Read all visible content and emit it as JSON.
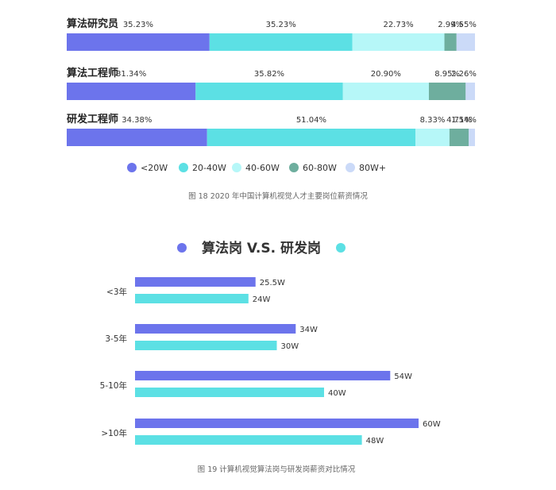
{
  "colors": {
    "seg1": "#6c74ec",
    "seg2": "#5ce0e4",
    "seg3": "#b6f7f8",
    "seg4": "#6eae9e",
    "seg5": "#cbdaf8",
    "bar_algo": "#6c74ec",
    "bar_dev": "#5ce0e4"
  },
  "chart_data": [
    {
      "type": "bar",
      "stacked": true,
      "orientation": "horizontal",
      "categories": [
        "算法研究员",
        "算法工程师",
        "研发工程师"
      ],
      "series": [
        {
          "name": "<20W",
          "values": [
            35.23,
            31.34,
            34.38
          ],
          "labels": [
            "35.23%",
            "31.34%",
            "34.38%"
          ]
        },
        {
          "name": "20-40W",
          "values": [
            35.23,
            35.82,
            51.04
          ],
          "labels": [
            "35.23%",
            "35.82%",
            "51.04%"
          ]
        },
        {
          "name": "40-60W",
          "values": [
            22.73,
            20.9,
            8.33
          ],
          "labels": [
            "22.73%",
            "20.90%",
            "8.33%"
          ]
        },
        {
          "name": "60-80W",
          "values": [
            2.99,
            8.95,
            4.71
          ],
          "labels": [
            "2.99%",
            "8.95%",
            "4.71%"
          ]
        },
        {
          "name": "80W+",
          "values": [
            4.55,
            2.26,
            1.54
          ],
          "labels": [
            "4.55%",
            "2.26%",
            "1.54%"
          ]
        }
      ],
      "legend_position": "bottom",
      "caption": "图 18 2020 年中国计算机视觉人才主要岗位薪资情况"
    },
    {
      "type": "bar",
      "orientation": "horizontal",
      "title": "算法岗 V.S. 研发岗",
      "categories": [
        "<3年",
        "3-5年",
        "5-10年",
        ">10年"
      ],
      "series": [
        {
          "values": [
            25.5,
            34,
            54,
            60
          ],
          "labels": [
            "25.5W",
            "34W",
            "54W",
            "60W"
          ]
        },
        {
          "values": [
            24,
            30,
            40,
            48
          ],
          "labels": [
            "24W",
            "30W",
            "40W",
            "48W"
          ]
        }
      ],
      "legend_position": "top",
      "caption": "图 19 计算机视觉算法岗与研发岗薪资对比情况"
    }
  ]
}
